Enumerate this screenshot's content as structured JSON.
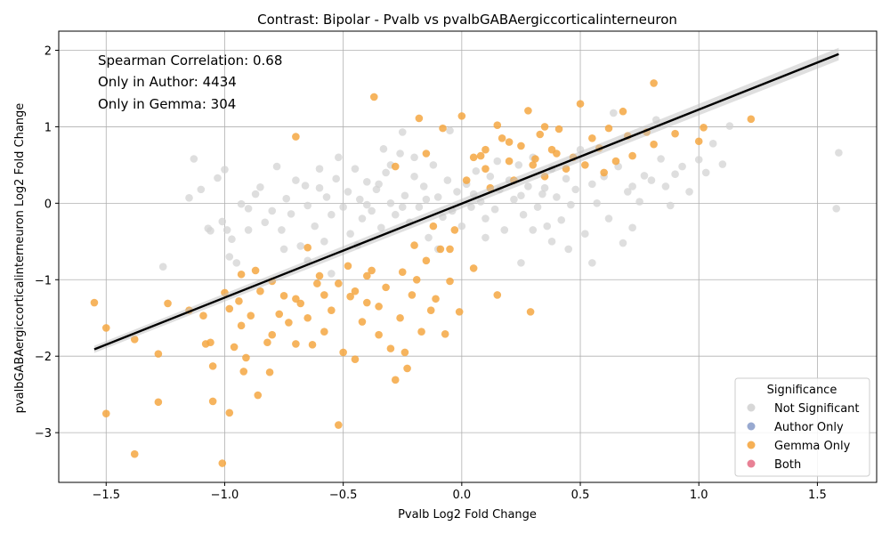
{
  "chart_data": {
    "type": "scatter",
    "title": "Contrast: Bipolar - Pvalb vs pvalbGABAergiccorticalinterneuron",
    "xlabel": "Pvalb Log2 Fold Change",
    "ylabel": "pvalbGABAergiccorticalinterneuron Log2 Fold Change",
    "xlim": [
      -1.7,
      1.75
    ],
    "ylim": [
      -3.65,
      2.25
    ],
    "x_ticks": [
      -1.5,
      -1.0,
      -0.5,
      0.0,
      0.5,
      1.0,
      1.5
    ],
    "x_tick_labels": [
      "−1.5",
      "−1.0",
      "−0.5",
      "0.0",
      "0.5",
      "1.0",
      "1.5"
    ],
    "y_ticks": [
      -3,
      -2,
      -1,
      0,
      1,
      2
    ],
    "y_tick_labels": [
      "−3",
      "−2",
      "−1",
      "0",
      "1",
      "2"
    ],
    "grid": true,
    "annotations": [
      "Spearman Correlation: 0.68",
      "Only in Author: 4434",
      "Only in Gemma: 304"
    ],
    "legend": {
      "title": "Significance",
      "placement": "lower-right",
      "entries": [
        {
          "label": "Not Significant",
          "color": "#d3d3d3"
        },
        {
          "label": "Author Only",
          "color": "#8da0cb"
        },
        {
          "label": "Gemma Only",
          "color": "#f5a742"
        },
        {
          "label": "Both",
          "color": "#e57389"
        }
      ]
    },
    "regression_line": {
      "x": [
        -1.55,
        1.59
      ],
      "y": [
        -1.91,
        1.95
      ],
      "color": "#000000"
    },
    "series": [
      {
        "name": "Not Significant",
        "color": "#d3d3d3",
        "points": [
          [
            -1.26,
            -0.83
          ],
          [
            -1.15,
            0.07
          ],
          [
            -1.13,
            0.58
          ],
          [
            -1.1,
            0.18
          ],
          [
            -1.07,
            -0.33
          ],
          [
            -1.06,
            -0.36
          ],
          [
            -1.03,
            0.33
          ],
          [
            -1.01,
            -0.24
          ],
          [
            -1.0,
            0.44
          ],
          [
            -0.99,
            -0.35
          ],
          [
            -0.98,
            -0.7
          ],
          [
            -0.97,
            -0.47
          ],
          [
            -0.95,
            -0.78
          ],
          [
            -0.93,
            -0.01
          ],
          [
            -0.9,
            -0.07
          ],
          [
            -0.87,
            0.12
          ],
          [
            -0.85,
            0.21
          ],
          [
            -0.83,
            -0.25
          ],
          [
            -0.8,
            -0.1
          ],
          [
            -0.78,
            0.48
          ],
          [
            -0.76,
            -0.35
          ],
          [
            -0.74,
            0.06
          ],
          [
            -0.72,
            -0.14
          ],
          [
            -0.7,
            0.3
          ],
          [
            -0.68,
            -0.56
          ],
          [
            -0.66,
            0.23
          ],
          [
            -0.65,
            -0.03
          ],
          [
            -0.62,
            -0.3
          ],
          [
            -0.6,
            0.2
          ],
          [
            -0.58,
            -0.5
          ],
          [
            -0.57,
            0.08
          ],
          [
            -0.55,
            -0.15
          ],
          [
            -0.53,
            0.32
          ],
          [
            -0.5,
            -0.05
          ],
          [
            -0.48,
            0.15
          ],
          [
            -0.47,
            -0.4
          ],
          [
            -0.45,
            0.45
          ],
          [
            -0.43,
            0.05
          ],
          [
            -0.42,
            -0.2
          ],
          [
            -0.4,
            0.28
          ],
          [
            -0.38,
            -0.1
          ],
          [
            -0.36,
            0.18
          ],
          [
            -0.34,
            -0.32
          ],
          [
            -0.32,
            0.4
          ],
          [
            -0.3,
            0.0
          ],
          [
            -0.28,
            -0.15
          ],
          [
            -0.26,
            0.65
          ],
          [
            -0.24,
            0.1
          ],
          [
            -0.22,
            -0.25
          ],
          [
            -0.2,
            0.35
          ],
          [
            -0.18,
            -0.05
          ],
          [
            -0.16,
            0.22
          ],
          [
            -0.14,
            -0.45
          ],
          [
            -0.12,
            0.5
          ],
          [
            -0.1,
            0.08
          ],
          [
            -0.08,
            -0.18
          ],
          [
            -0.06,
            0.3
          ],
          [
            -0.04,
            -0.1
          ],
          [
            -0.02,
            0.15
          ],
          [
            0.0,
            -0.3
          ],
          [
            0.02,
            0.25
          ],
          [
            0.04,
            -0.05
          ],
          [
            0.06,
            0.42
          ],
          [
            0.08,
            0.02
          ],
          [
            0.1,
            -0.2
          ],
          [
            0.12,
            0.35
          ],
          [
            0.14,
            -0.08
          ],
          [
            0.16,
            0.18
          ],
          [
            0.18,
            -0.35
          ],
          [
            0.2,
            0.3
          ],
          [
            0.22,
            0.05
          ],
          [
            0.24,
            0.5
          ],
          [
            0.26,
            -0.15
          ],
          [
            0.28,
            0.22
          ],
          [
            0.3,
            0.6
          ],
          [
            0.32,
            -0.05
          ],
          [
            0.34,
            0.12
          ],
          [
            0.36,
            -0.3
          ],
          [
            0.38,
            0.45
          ],
          [
            0.4,
            0.08
          ],
          [
            0.42,
            -0.22
          ],
          [
            0.44,
            0.32
          ],
          [
            0.46,
            -0.02
          ],
          [
            0.48,
            0.18
          ],
          [
            0.5,
            0.7
          ],
          [
            0.52,
            -0.4
          ],
          [
            0.55,
            0.25
          ],
          [
            0.57,
            0.0
          ],
          [
            0.6,
            0.35
          ],
          [
            0.62,
            -0.2
          ],
          [
            0.64,
            1.18
          ],
          [
            0.66,
            0.48
          ],
          [
            0.68,
            -0.52
          ],
          [
            0.7,
            0.15
          ],
          [
            0.72,
            0.22
          ],
          [
            0.75,
            0.02
          ],
          [
            0.77,
            0.36
          ],
          [
            0.8,
            0.3
          ],
          [
            0.82,
            1.09
          ],
          [
            0.84,
            0.58
          ],
          [
            0.86,
            0.22
          ],
          [
            0.88,
            -0.03
          ],
          [
            0.9,
            0.38
          ],
          [
            0.93,
            0.48
          ],
          [
            0.96,
            0.15
          ],
          [
            1.0,
            0.57
          ],
          [
            1.03,
            0.4
          ],
          [
            1.06,
            0.78
          ],
          [
            1.1,
            0.51
          ],
          [
            1.13,
            1.01
          ],
          [
            1.58,
            -0.07
          ],
          [
            1.59,
            0.66
          ],
          [
            -0.52,
            0.6
          ],
          [
            -0.33,
            0.71
          ],
          [
            -0.25,
            0.93
          ],
          [
            -0.05,
            0.95
          ],
          [
            -0.65,
            -0.75
          ],
          [
            -0.55,
            -0.92
          ],
          [
            0.25,
            -0.78
          ],
          [
            0.45,
            -0.6
          ],
          [
            -0.9,
            -0.35
          ],
          [
            -0.75,
            -0.6
          ],
          [
            0.55,
            -0.78
          ],
          [
            0.72,
            -0.32
          ],
          [
            -0.44,
            -0.55
          ],
          [
            0.38,
            -0.5
          ],
          [
            -0.1,
            -0.6
          ],
          [
            0.1,
            -0.45
          ],
          [
            0.3,
            -0.35
          ],
          [
            -0.3,
            0.5
          ],
          [
            -0.6,
            0.45
          ],
          [
            -0.2,
            0.6
          ],
          [
            0.15,
            0.55
          ],
          [
            -0.4,
            -0.02
          ],
          [
            -0.35,
            0.25
          ],
          [
            -0.15,
            0.05
          ],
          [
            0.05,
            0.12
          ],
          [
            0.25,
            0.1
          ],
          [
            -0.25,
            -0.05
          ],
          [
            0.35,
            0.2
          ]
        ]
      },
      {
        "name": "Author Only",
        "color": "#8da0cb",
        "points": []
      },
      {
        "name": "Gemma Only",
        "color": "#f5a742",
        "points": [
          [
            -1.55,
            -1.3
          ],
          [
            -1.5,
            -1.63
          ],
          [
            -1.5,
            -2.75
          ],
          [
            -1.38,
            -1.78
          ],
          [
            -1.38,
            -3.28
          ],
          [
            -1.28,
            -1.97
          ],
          [
            -1.28,
            -2.6
          ],
          [
            -1.24,
            -1.31
          ],
          [
            -1.15,
            -1.4
          ],
          [
            -1.09,
            -1.47
          ],
          [
            -1.08,
            -1.84
          ],
          [
            -1.06,
            -1.82
          ],
          [
            -1.05,
            -2.13
          ],
          [
            -1.05,
            -2.59
          ],
          [
            -1.01,
            -3.4
          ],
          [
            -1.0,
            -1.17
          ],
          [
            -0.98,
            -1.38
          ],
          [
            -0.98,
            -2.74
          ],
          [
            -0.96,
            -1.88
          ],
          [
            -0.94,
            -1.28
          ],
          [
            -0.93,
            -0.93
          ],
          [
            -0.93,
            -1.6
          ],
          [
            -0.92,
            -2.2
          ],
          [
            -0.91,
            -2.02
          ],
          [
            -0.89,
            -1.47
          ],
          [
            -0.87,
            -0.88
          ],
          [
            -0.86,
            -2.51
          ],
          [
            -0.85,
            -1.15
          ],
          [
            -0.82,
            -1.82
          ],
          [
            -0.81,
            -2.21
          ],
          [
            -0.8,
            -1.72
          ],
          [
            -0.8,
            -1.02
          ],
          [
            -0.77,
            -1.45
          ],
          [
            -0.75,
            -1.21
          ],
          [
            -0.73,
            -1.56
          ],
          [
            -0.7,
            0.87
          ],
          [
            -0.7,
            -1.84
          ],
          [
            -0.68,
            -1.31
          ],
          [
            -0.65,
            -0.58
          ],
          [
            -0.63,
            -1.85
          ],
          [
            -0.61,
            -1.05
          ],
          [
            -0.58,
            -1.68
          ],
          [
            -0.55,
            -1.4
          ],
          [
            -0.52,
            -2.9
          ],
          [
            -0.5,
            -1.95
          ],
          [
            -0.48,
            -0.82
          ],
          [
            -0.47,
            -1.22
          ],
          [
            -0.45,
            -2.04
          ],
          [
            -0.42,
            -1.55
          ],
          [
            -0.4,
            -1.3
          ],
          [
            -0.38,
            -0.88
          ],
          [
            -0.37,
            1.39
          ],
          [
            -0.35,
            -1.72
          ],
          [
            -0.32,
            -1.1
          ],
          [
            -0.3,
            -1.9
          ],
          [
            -0.28,
            -2.31
          ],
          [
            -0.26,
            -1.5
          ],
          [
            -0.24,
            -1.95
          ],
          [
            -0.23,
            -2.16
          ],
          [
            -0.21,
            -1.2
          ],
          [
            -0.19,
            -1.0
          ],
          [
            -0.17,
            -1.68
          ],
          [
            -0.15,
            -0.75
          ],
          [
            -0.13,
            -1.4
          ],
          [
            -0.11,
            -1.25
          ],
          [
            -0.09,
            -0.6
          ],
          [
            -0.07,
            -1.71
          ],
          [
            -0.05,
            -1.02
          ],
          [
            -0.03,
            -0.35
          ],
          [
            -0.01,
            -1.42
          ],
          [
            0.0,
            1.14
          ],
          [
            0.02,
            0.3
          ],
          [
            0.05,
            -0.85
          ],
          [
            0.08,
            0.62
          ],
          [
            0.1,
            0.45
          ],
          [
            0.12,
            0.2
          ],
          [
            0.15,
            -1.2
          ],
          [
            0.17,
            0.85
          ],
          [
            0.2,
            0.55
          ],
          [
            0.22,
            0.3
          ],
          [
            0.25,
            0.75
          ],
          [
            0.28,
            1.21
          ],
          [
            0.29,
            -1.42
          ],
          [
            0.31,
            0.58
          ],
          [
            0.33,
            0.9
          ],
          [
            0.35,
            0.35
          ],
          [
            0.38,
            0.7
          ],
          [
            0.41,
            0.97
          ],
          [
            0.44,
            0.45
          ],
          [
            0.47,
            0.6
          ],
          [
            0.5,
            1.3
          ],
          [
            0.52,
            0.5
          ],
          [
            0.55,
            0.85
          ],
          [
            0.58,
            0.72
          ],
          [
            0.6,
            0.4
          ],
          [
            0.62,
            0.98
          ],
          [
            0.65,
            0.55
          ],
          [
            0.68,
            1.2
          ],
          [
            0.7,
            0.88
          ],
          [
            0.72,
            0.62
          ],
          [
            0.78,
            0.93
          ],
          [
            0.81,
            1.57
          ],
          [
            0.81,
            0.77
          ],
          [
            0.9,
            0.91
          ],
          [
            1.0,
            0.81
          ],
          [
            1.02,
            0.99
          ],
          [
            1.22,
            1.1
          ],
          [
            -0.18,
            1.11
          ],
          [
            -0.08,
            0.98
          ],
          [
            0.15,
            1.02
          ],
          [
            -0.28,
            0.48
          ],
          [
            -0.15,
            0.65
          ],
          [
            0.35,
            1.0
          ],
          [
            -0.6,
            -0.95
          ],
          [
            -0.52,
            -1.05
          ],
          [
            -0.45,
            -1.15
          ],
          [
            -0.4,
            -0.95
          ],
          [
            -0.35,
            -1.35
          ],
          [
            -0.25,
            -0.9
          ],
          [
            -0.2,
            -0.55
          ],
          [
            -0.12,
            -0.3
          ],
          [
            -0.05,
            -0.6
          ],
          [
            0.05,
            0.6
          ],
          [
            0.1,
            0.7
          ],
          [
            0.2,
            0.8
          ],
          [
            0.3,
            0.5
          ],
          [
            0.4,
            0.65
          ],
          [
            -0.7,
            -1.25
          ],
          [
            -0.65,
            -1.5
          ],
          [
            -0.58,
            -1.2
          ]
        ]
      },
      {
        "name": "Both",
        "color": "#e57389",
        "points": []
      }
    ]
  }
}
